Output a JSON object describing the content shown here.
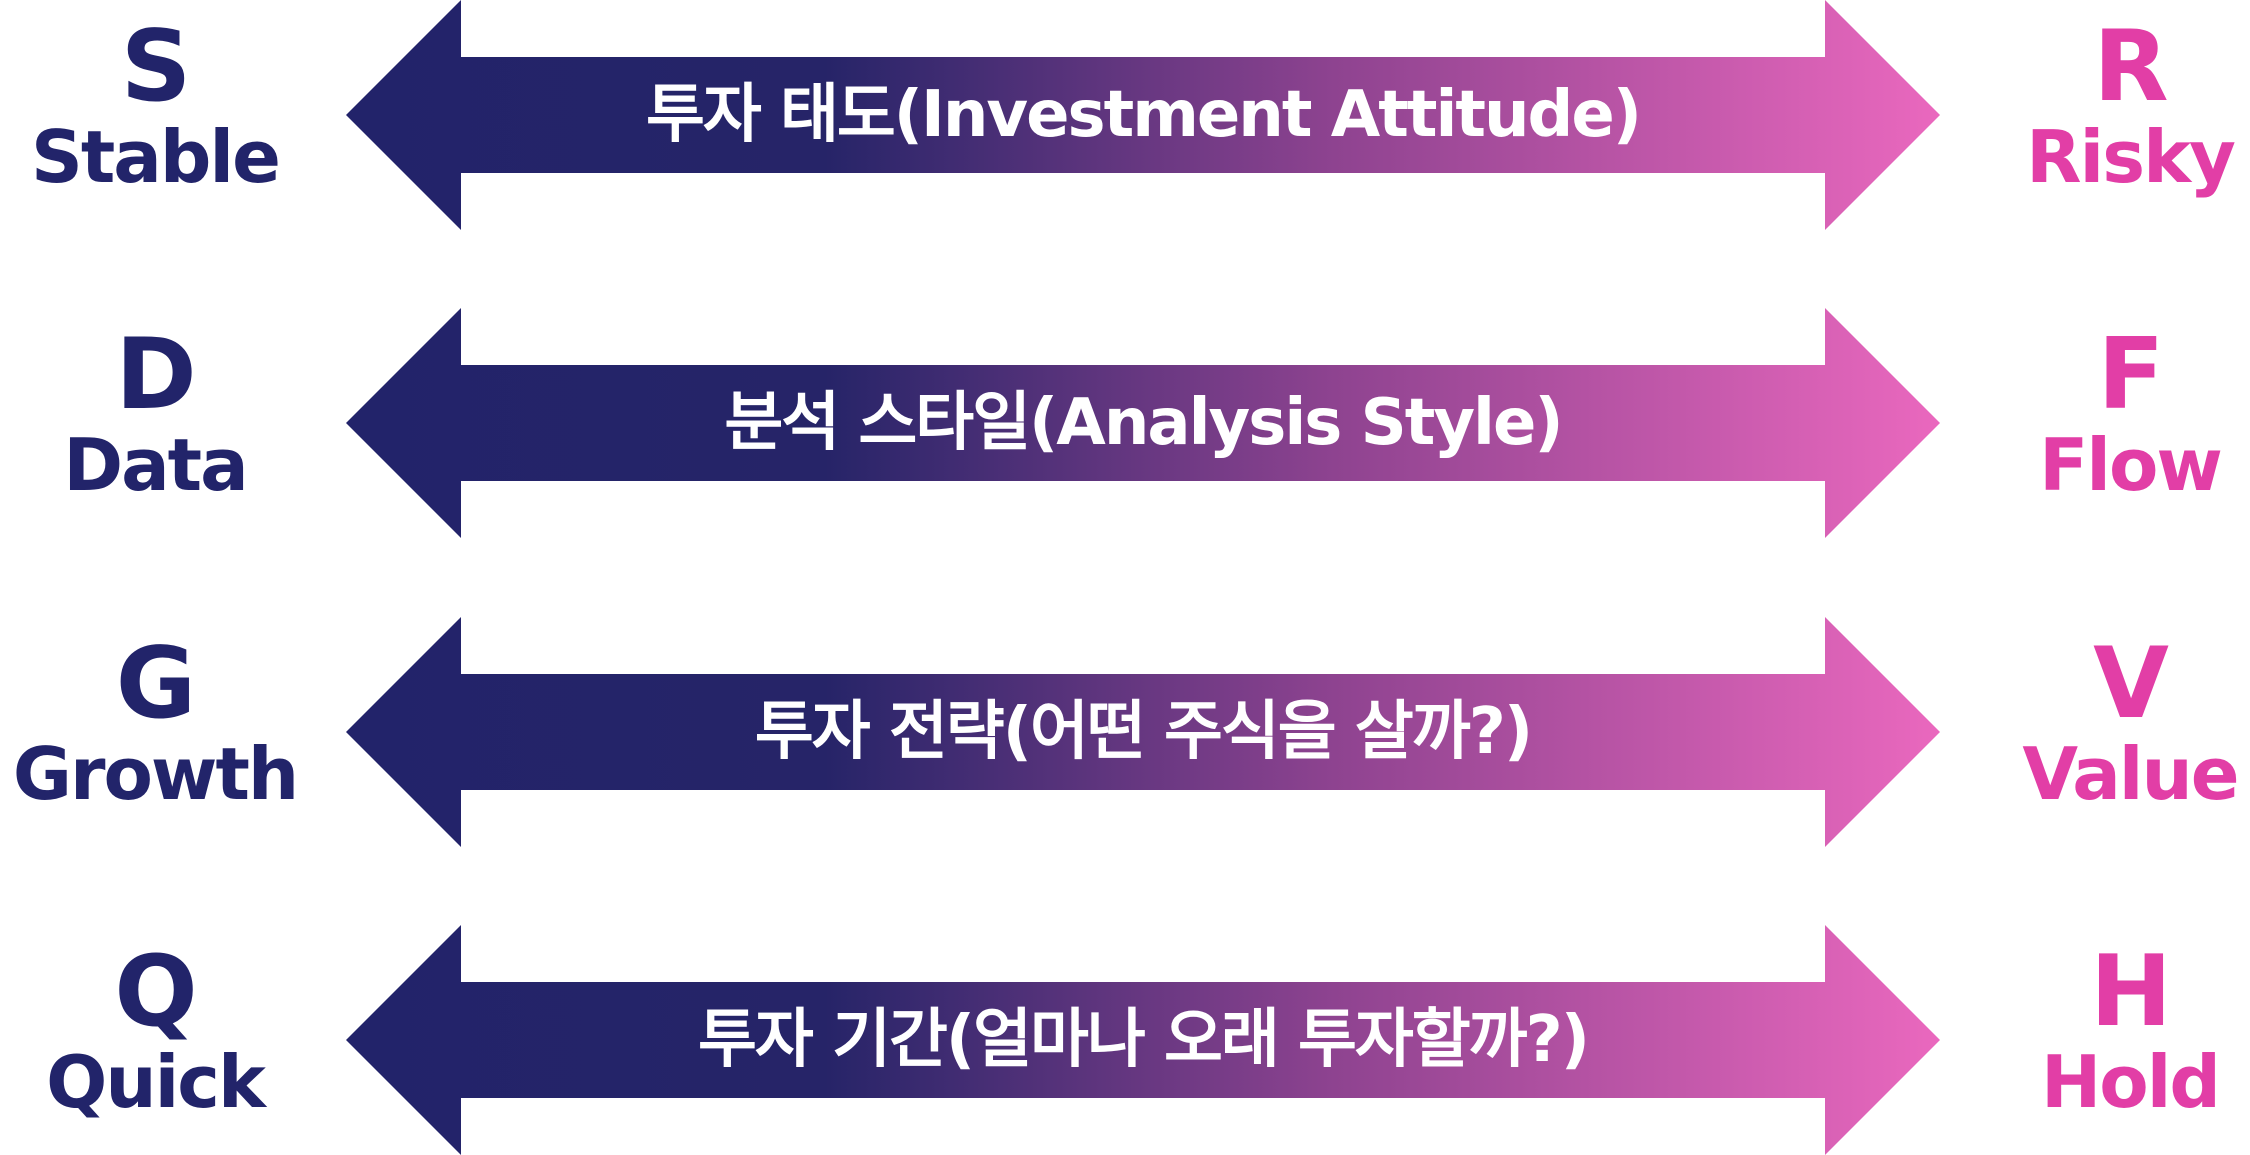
{
  "colors": {
    "left_accent": "#22246a",
    "right_accent": "#e23ea6",
    "gradient_start": "#22236a",
    "gradient_end": "#ea68be",
    "label_text": "#ffffff"
  },
  "rows": [
    {
      "left": {
        "letter": "S",
        "word": "Stable"
      },
      "label": "투자 태도(Investment Attitude)",
      "right": {
        "letter": "R",
        "word": "Risky"
      }
    },
    {
      "left": {
        "letter": "D",
        "word": "Data"
      },
      "label": "분석 스타일(Analysis Style)",
      "right": {
        "letter": "F",
        "word": "Flow"
      }
    },
    {
      "left": {
        "letter": "G",
        "word": "Growth"
      },
      "label": "투자 전략(어떤 주식을 살까?)",
      "right": {
        "letter": "V",
        "word": "Value"
      }
    },
    {
      "left": {
        "letter": "Q",
        "word": "Quick"
      },
      "label": "투자 기간(얼마나 오래 투자할까?)",
      "right": {
        "letter": "H",
        "word": "Hold"
      }
    }
  ]
}
